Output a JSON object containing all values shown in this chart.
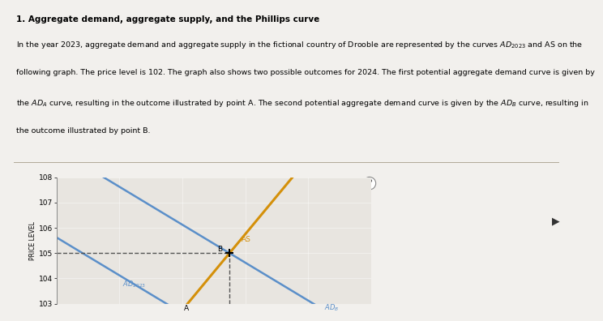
{
  "title": "1. Aggregate demand, aggregate supply, and the Phillips curve",
  "ylabel": "PRICE LEVEL",
  "ylim": [
    103,
    108
  ],
  "yticks": [
    103,
    104,
    105,
    106,
    107,
    108
  ],
  "xlim": [
    0,
    10
  ],
  "bg_color": "#f2f0ed",
  "plot_bg_color": "#e8e5e0",
  "ad2023_color": "#5b8fc9",
  "adB_color": "#5b8fc9",
  "as_color": "#d4900a",
  "dashed_color": "#555555",
  "slope_ad": -0.75,
  "slope_as": 1.5,
  "pA_x": 3.5,
  "pA_y": 103,
  "pB_x": 5.5,
  "pB_y": 105,
  "body_lines": [
    "In the year 2023, aggregate demand and aggregate supply in the fictional country of Drooble are represented by the curves $AD_{2023}$ and AS on the",
    "following graph. The price level is 102. The graph also shows two possible outcomes for 2024. The first potential aggregate demand curve is given by",
    "the $AD_A$ curve, resulting in the outcome illustrated by point A. The second potential aggregate demand curve is given by the $AD_B$ curve, resulting in",
    "the outcome illustrated by point B."
  ]
}
